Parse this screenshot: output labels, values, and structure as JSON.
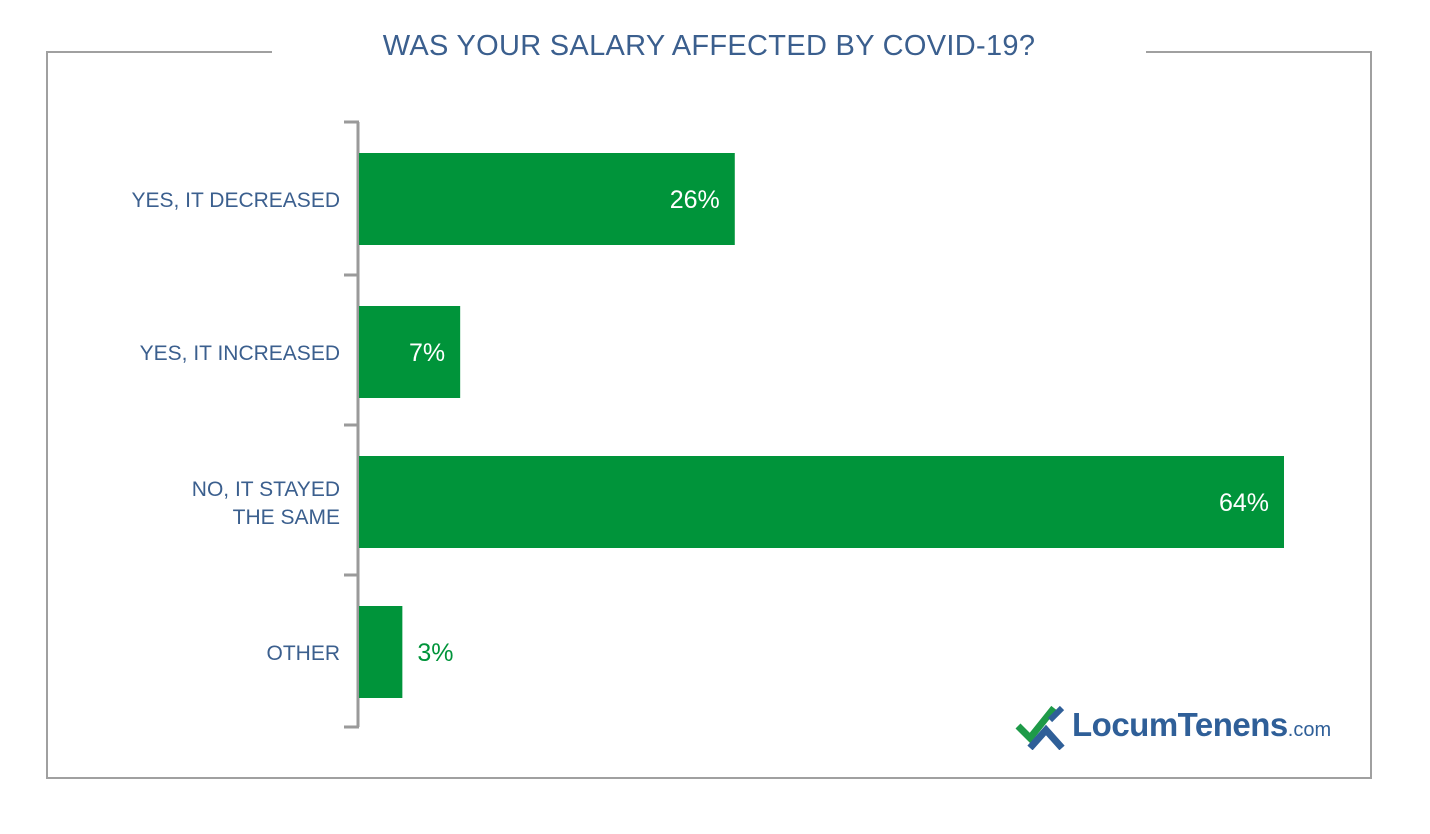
{
  "chart_data": {
    "type": "bar",
    "orientation": "horizontal",
    "title": "WAS YOUR SALARY AFFECTED BY COVID-19?",
    "categories": [
      "YES, IT DECREASED",
      "YES, IT INCREASED",
      "NO, IT STAYED THE SAME",
      "OTHER"
    ],
    "category_lines": [
      [
        "YES, IT DECREASED"
      ],
      [
        "YES, IT INCREASED"
      ],
      [
        "NO, IT STAYED",
        "THE SAME"
      ],
      [
        "OTHER"
      ]
    ],
    "values": [
      26,
      7,
      64,
      3
    ],
    "data_labels": [
      "26%",
      "7%",
      "64%",
      "3%"
    ],
    "unit": "%",
    "xlim": [
      0,
      64
    ],
    "grid": false,
    "colors": {
      "bar": "#00943a",
      "label_inside": "#ffffff",
      "label_outside": "#00943a",
      "category_text": "#3b5f8e",
      "axis": "#9a9a9a"
    }
  },
  "logo": {
    "name": "LocumTenens",
    "suffix": ".com",
    "colors": {
      "check": "#1e9a48",
      "arrow": "#2f5f98"
    }
  }
}
